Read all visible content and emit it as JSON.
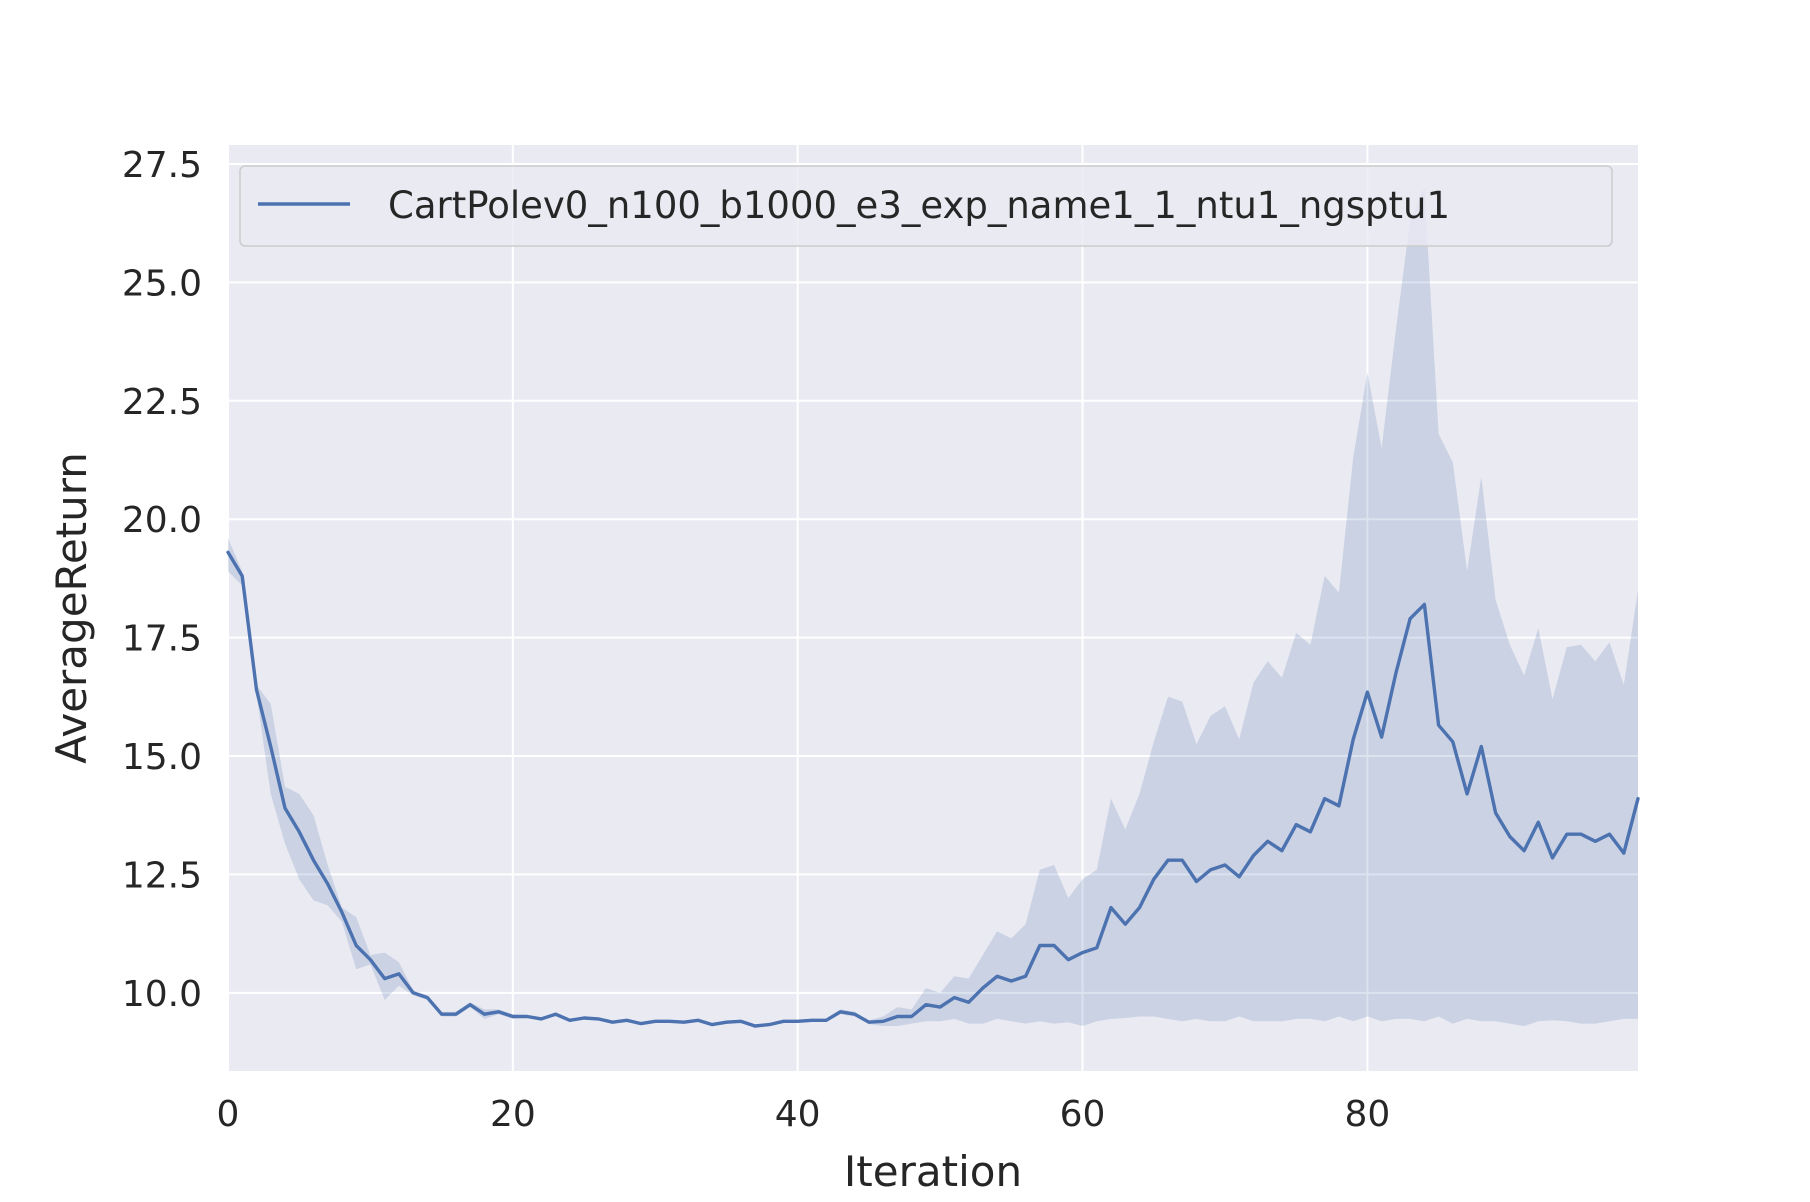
{
  "chart_data": {
    "type": "line",
    "xlabel": "Iteration",
    "ylabel": "AverageReturn",
    "xlim": [
      0,
      99
    ],
    "ylim": [
      8.35,
      27.9
    ],
    "xticks": [
      0,
      20,
      40,
      60,
      80
    ],
    "xtick_labels": [
      "0",
      "20",
      "40",
      "60",
      "80"
    ],
    "yticks": [
      10.0,
      12.5,
      15.0,
      17.5,
      20.0,
      22.5,
      25.0,
      27.5
    ],
    "ytick_labels": [
      "10.0",
      "12.5",
      "15.0",
      "17.5",
      "20.0",
      "22.5",
      "25.0",
      "27.5"
    ],
    "grid": true,
    "legend_position": "top",
    "colors": {
      "line": "#4c72b0",
      "band": "#4c72b0",
      "background": "#eaeaf2",
      "grid": "#ffffff"
    },
    "series": [
      {
        "name": "CartPolev0_n100_b1000_e3_exp_name1_1_ntu1_ngsptu1",
        "x": [
          0,
          1,
          2,
          3,
          4,
          5,
          6,
          7,
          8,
          9,
          10,
          11,
          12,
          13,
          14,
          15,
          16,
          17,
          18,
          19,
          20,
          21,
          22,
          23,
          24,
          25,
          26,
          27,
          28,
          29,
          30,
          31,
          32,
          33,
          34,
          35,
          36,
          37,
          38,
          39,
          40,
          41,
          42,
          43,
          44,
          45,
          46,
          47,
          48,
          49,
          50,
          51,
          52,
          53,
          54,
          55,
          56,
          57,
          58,
          59,
          60,
          61,
          62,
          63,
          64,
          65,
          66,
          67,
          68,
          69,
          70,
          71,
          72,
          73,
          74,
          75,
          76,
          77,
          78,
          79,
          80,
          81,
          82,
          83,
          84,
          85,
          86,
          87,
          88,
          89,
          90,
          91,
          92,
          93,
          94,
          95,
          96,
          97,
          98,
          99
        ],
        "mean": [
          19.3,
          18.8,
          16.4,
          15.2,
          13.9,
          13.4,
          12.8,
          12.3,
          11.7,
          11.0,
          10.7,
          10.3,
          10.4,
          10.0,
          9.9,
          9.55,
          9.55,
          9.75,
          9.55,
          9.6,
          9.5,
          9.5,
          9.45,
          9.55,
          9.42,
          9.47,
          9.45,
          9.38,
          9.42,
          9.35,
          9.4,
          9.4,
          9.38,
          9.42,
          9.33,
          9.38,
          9.4,
          9.3,
          9.33,
          9.4,
          9.4,
          9.42,
          9.42,
          9.6,
          9.55,
          9.38,
          9.4,
          9.5,
          9.5,
          9.75,
          9.7,
          9.9,
          9.8,
          10.1,
          10.35,
          10.25,
          10.35,
          11.0,
          11.0,
          10.7,
          10.85,
          10.95,
          11.8,
          11.45,
          11.8,
          12.4,
          12.8,
          12.8,
          12.35,
          12.6,
          12.7,
          12.45,
          12.9,
          13.2,
          13.0,
          13.55,
          13.4,
          14.1,
          13.95,
          15.35,
          16.35,
          15.4,
          16.75,
          17.9,
          18.2,
          15.65,
          15.3,
          14.2,
          15.2,
          13.8,
          13.3,
          13.0,
          13.6,
          12.85,
          13.35,
          13.35,
          13.2,
          13.35,
          12.95,
          14.1
        ],
        "upper": [
          19.6,
          18.9,
          16.5,
          16.1,
          14.35,
          14.2,
          13.75,
          12.7,
          11.8,
          11.6,
          10.8,
          10.85,
          10.65,
          10.05,
          9.95,
          9.6,
          9.6,
          9.8,
          9.65,
          9.65,
          9.55,
          9.52,
          9.48,
          9.58,
          9.45,
          9.5,
          9.48,
          9.4,
          9.45,
          9.38,
          9.42,
          9.42,
          9.4,
          9.45,
          9.36,
          9.4,
          9.42,
          9.33,
          9.36,
          9.42,
          9.43,
          9.45,
          9.45,
          9.65,
          9.6,
          9.42,
          9.5,
          9.7,
          9.65,
          10.1,
          10.0,
          10.35,
          10.3,
          10.8,
          11.3,
          11.15,
          11.45,
          12.6,
          12.7,
          12.0,
          12.4,
          12.6,
          14.1,
          13.45,
          14.2,
          15.3,
          16.25,
          16.15,
          15.25,
          15.85,
          16.05,
          15.35,
          16.55,
          17.0,
          16.65,
          17.6,
          17.35,
          18.8,
          18.45,
          21.3,
          23.1,
          21.5,
          24.0,
          26.3,
          27.0,
          21.8,
          21.2,
          18.9,
          20.9,
          18.3,
          17.35,
          16.7,
          17.7,
          16.2,
          17.3,
          17.35,
          17.0,
          17.4,
          16.5,
          18.5
        ],
        "lower": [
          18.9,
          18.6,
          16.3,
          14.2,
          13.15,
          12.4,
          11.95,
          11.85,
          11.5,
          10.5,
          10.6,
          9.85,
          10.15,
          9.95,
          9.85,
          9.5,
          9.5,
          9.7,
          9.45,
          9.55,
          9.45,
          9.48,
          9.42,
          9.52,
          9.39,
          9.44,
          9.42,
          9.36,
          9.39,
          9.32,
          9.38,
          9.38,
          9.36,
          9.39,
          9.3,
          9.36,
          9.38,
          9.27,
          9.3,
          9.38,
          9.37,
          9.39,
          9.39,
          9.55,
          9.5,
          9.34,
          9.3,
          9.3,
          9.35,
          9.4,
          9.4,
          9.45,
          9.35,
          9.35,
          9.45,
          9.4,
          9.35,
          9.4,
          9.35,
          9.38,
          9.3,
          9.4,
          9.45,
          9.47,
          9.5,
          9.5,
          9.45,
          9.4,
          9.45,
          9.4,
          9.4,
          9.5,
          9.4,
          9.4,
          9.4,
          9.45,
          9.45,
          9.4,
          9.5,
          9.4,
          9.5,
          9.4,
          9.45,
          9.45,
          9.4,
          9.5,
          9.35,
          9.45,
          9.4,
          9.4,
          9.35,
          9.3,
          9.4,
          9.42,
          9.4,
          9.35,
          9.35,
          9.4,
          9.45,
          9.45
        ]
      }
    ]
  }
}
